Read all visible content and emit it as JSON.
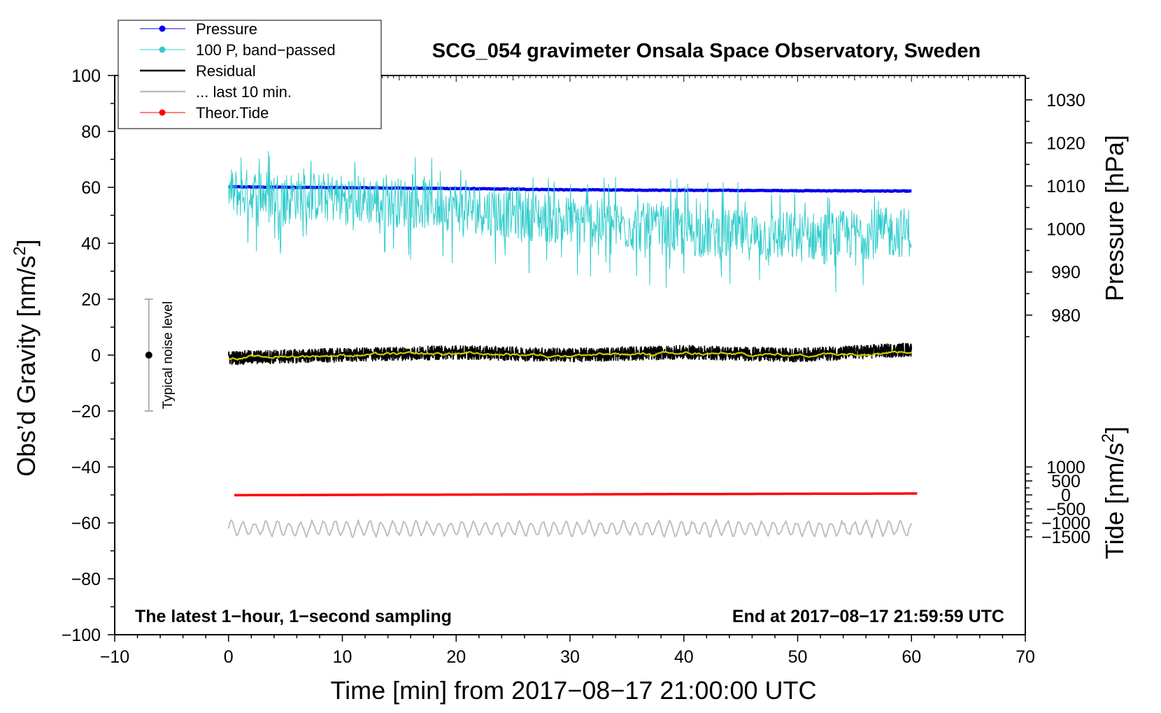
{
  "chart_data": {
    "type": "line",
    "title": "SCG_054 gravimeter Onsala Space Observatory, Sweden",
    "xlabel": "Time [min] from 2017−08−17 21:00:00 UTC",
    "ylabel_left_main": "Obs’d Gravity [nm/s",
    "ylabel_left_sup": "2",
    "ylabel_left_end": "]",
    "ylabel_right_pressure": "Pressure [hPa]",
    "ylabel_right_tide_main": "Tide [nm/s",
    "ylabel_right_tide_sup": "2",
    "ylabel_right_tide_end": "]",
    "xlim": [
      -10,
      70
    ],
    "ylim": [
      -100,
      100
    ],
    "x_ticks": [
      -10,
      0,
      10,
      20,
      30,
      40,
      50,
      60,
      70
    ],
    "x_tick_labels": [
      "−10",
      "0",
      "10",
      "20",
      "30",
      "40",
      "50",
      "60",
      "70"
    ],
    "y_ticks": [
      -100,
      -80,
      -60,
      -40,
      -20,
      0,
      20,
      40,
      60,
      80,
      100
    ],
    "y_tick_labels": [
      "−100",
      "−80",
      "−60",
      "−40",
      "−20",
      "0",
      "20",
      "40",
      "60",
      "80",
      "100"
    ],
    "pressure_axis": {
      "ticks": [
        980,
        990,
        1000,
        1010,
        1020,
        1030
      ],
      "tick_labels": [
        "980",
        "990",
        "1000",
        "1010",
        "1020",
        "1030"
      ],
      "ref_value": 1010,
      "ref_gravity": 60.5,
      "gravity_per_unit": 1.54
    },
    "tide_axis": {
      "ticks": [
        -1500,
        -1000,
        -500,
        0,
        500,
        1000
      ],
      "tick_labels": [
        "−1500",
        "−1000",
        "−500",
        "0",
        "500",
        "1000"
      ],
      "ref_value": 0,
      "ref_gravity": -50,
      "gravity_per_unit": 0.01
    },
    "series": [
      {
        "name": "Pressure",
        "legend": "Pressure",
        "color": "#0000ee",
        "kind": "line-dot",
        "x": [
          0,
          10,
          20,
          30,
          40,
          50,
          60
        ],
        "values": [
          1009.8,
          1009.6,
          1009.4,
          1009.1,
          1009.0,
          1008.9,
          1008.8
        ],
        "axis": "pressure"
      },
      {
        "name": "100 P, band-passed",
        "legend": "100 P, band−passed",
        "color": "#33cccc",
        "kind": "line-dot",
        "x": [
          0,
          10,
          20,
          30,
          40,
          50,
          60
        ],
        "values": [
          59,
          57,
          54,
          49,
          45,
          43,
          45
        ],
        "axis": "gravity",
        "spread": 9
      },
      {
        "name": "Residual",
        "legend": "Residual",
        "color": "#000000",
        "kind": "line",
        "x": [
          0,
          10,
          20,
          30,
          40,
          50,
          60
        ],
        "values": [
          -1,
          0,
          1,
          0,
          1,
          0,
          2
        ],
        "axis": "gravity",
        "spread": 2.5
      },
      {
        "name": "Residual smoothed",
        "legend": "",
        "color": "#cccc00",
        "kind": "line",
        "x": [
          0,
          10,
          20,
          30,
          40,
          50,
          60
        ],
        "values": [
          -1,
          0,
          0.5,
          0,
          0.5,
          0,
          1.5
        ],
        "axis": "gravity",
        "spread": 0.7
      },
      {
        "name": "... last 10 min.",
        "legend": "... last 10 min.",
        "color": "#bfbfbf",
        "kind": "line",
        "x": [
          0,
          10,
          20,
          30,
          40,
          50,
          60
        ],
        "values": [
          -62,
          -62,
          -62,
          -62,
          -62,
          -62,
          -62
        ],
        "axis": "gravity",
        "spread": 2.5
      },
      {
        "name": "Theor.Tide",
        "legend": "Theor.Tide",
        "color": "#ff0000",
        "kind": "line-dot",
        "x": [
          0.5,
          10,
          20,
          30,
          40,
          50,
          60.5
        ],
        "values": [
          -50.1,
          -50.0,
          -49.9,
          -49.8,
          -49.7,
          -49.6,
          -49.5
        ],
        "axis": "gravity"
      }
    ],
    "noise_bar": {
      "label": "Typical noise level",
      "x": -7,
      "center": 0,
      "low": -20,
      "high": 20
    },
    "note_left": "The latest 1−hour, 1−second sampling",
    "note_right": "End at 2017−08−17 21:59:59 UTC",
    "legend_position": "top-left"
  }
}
